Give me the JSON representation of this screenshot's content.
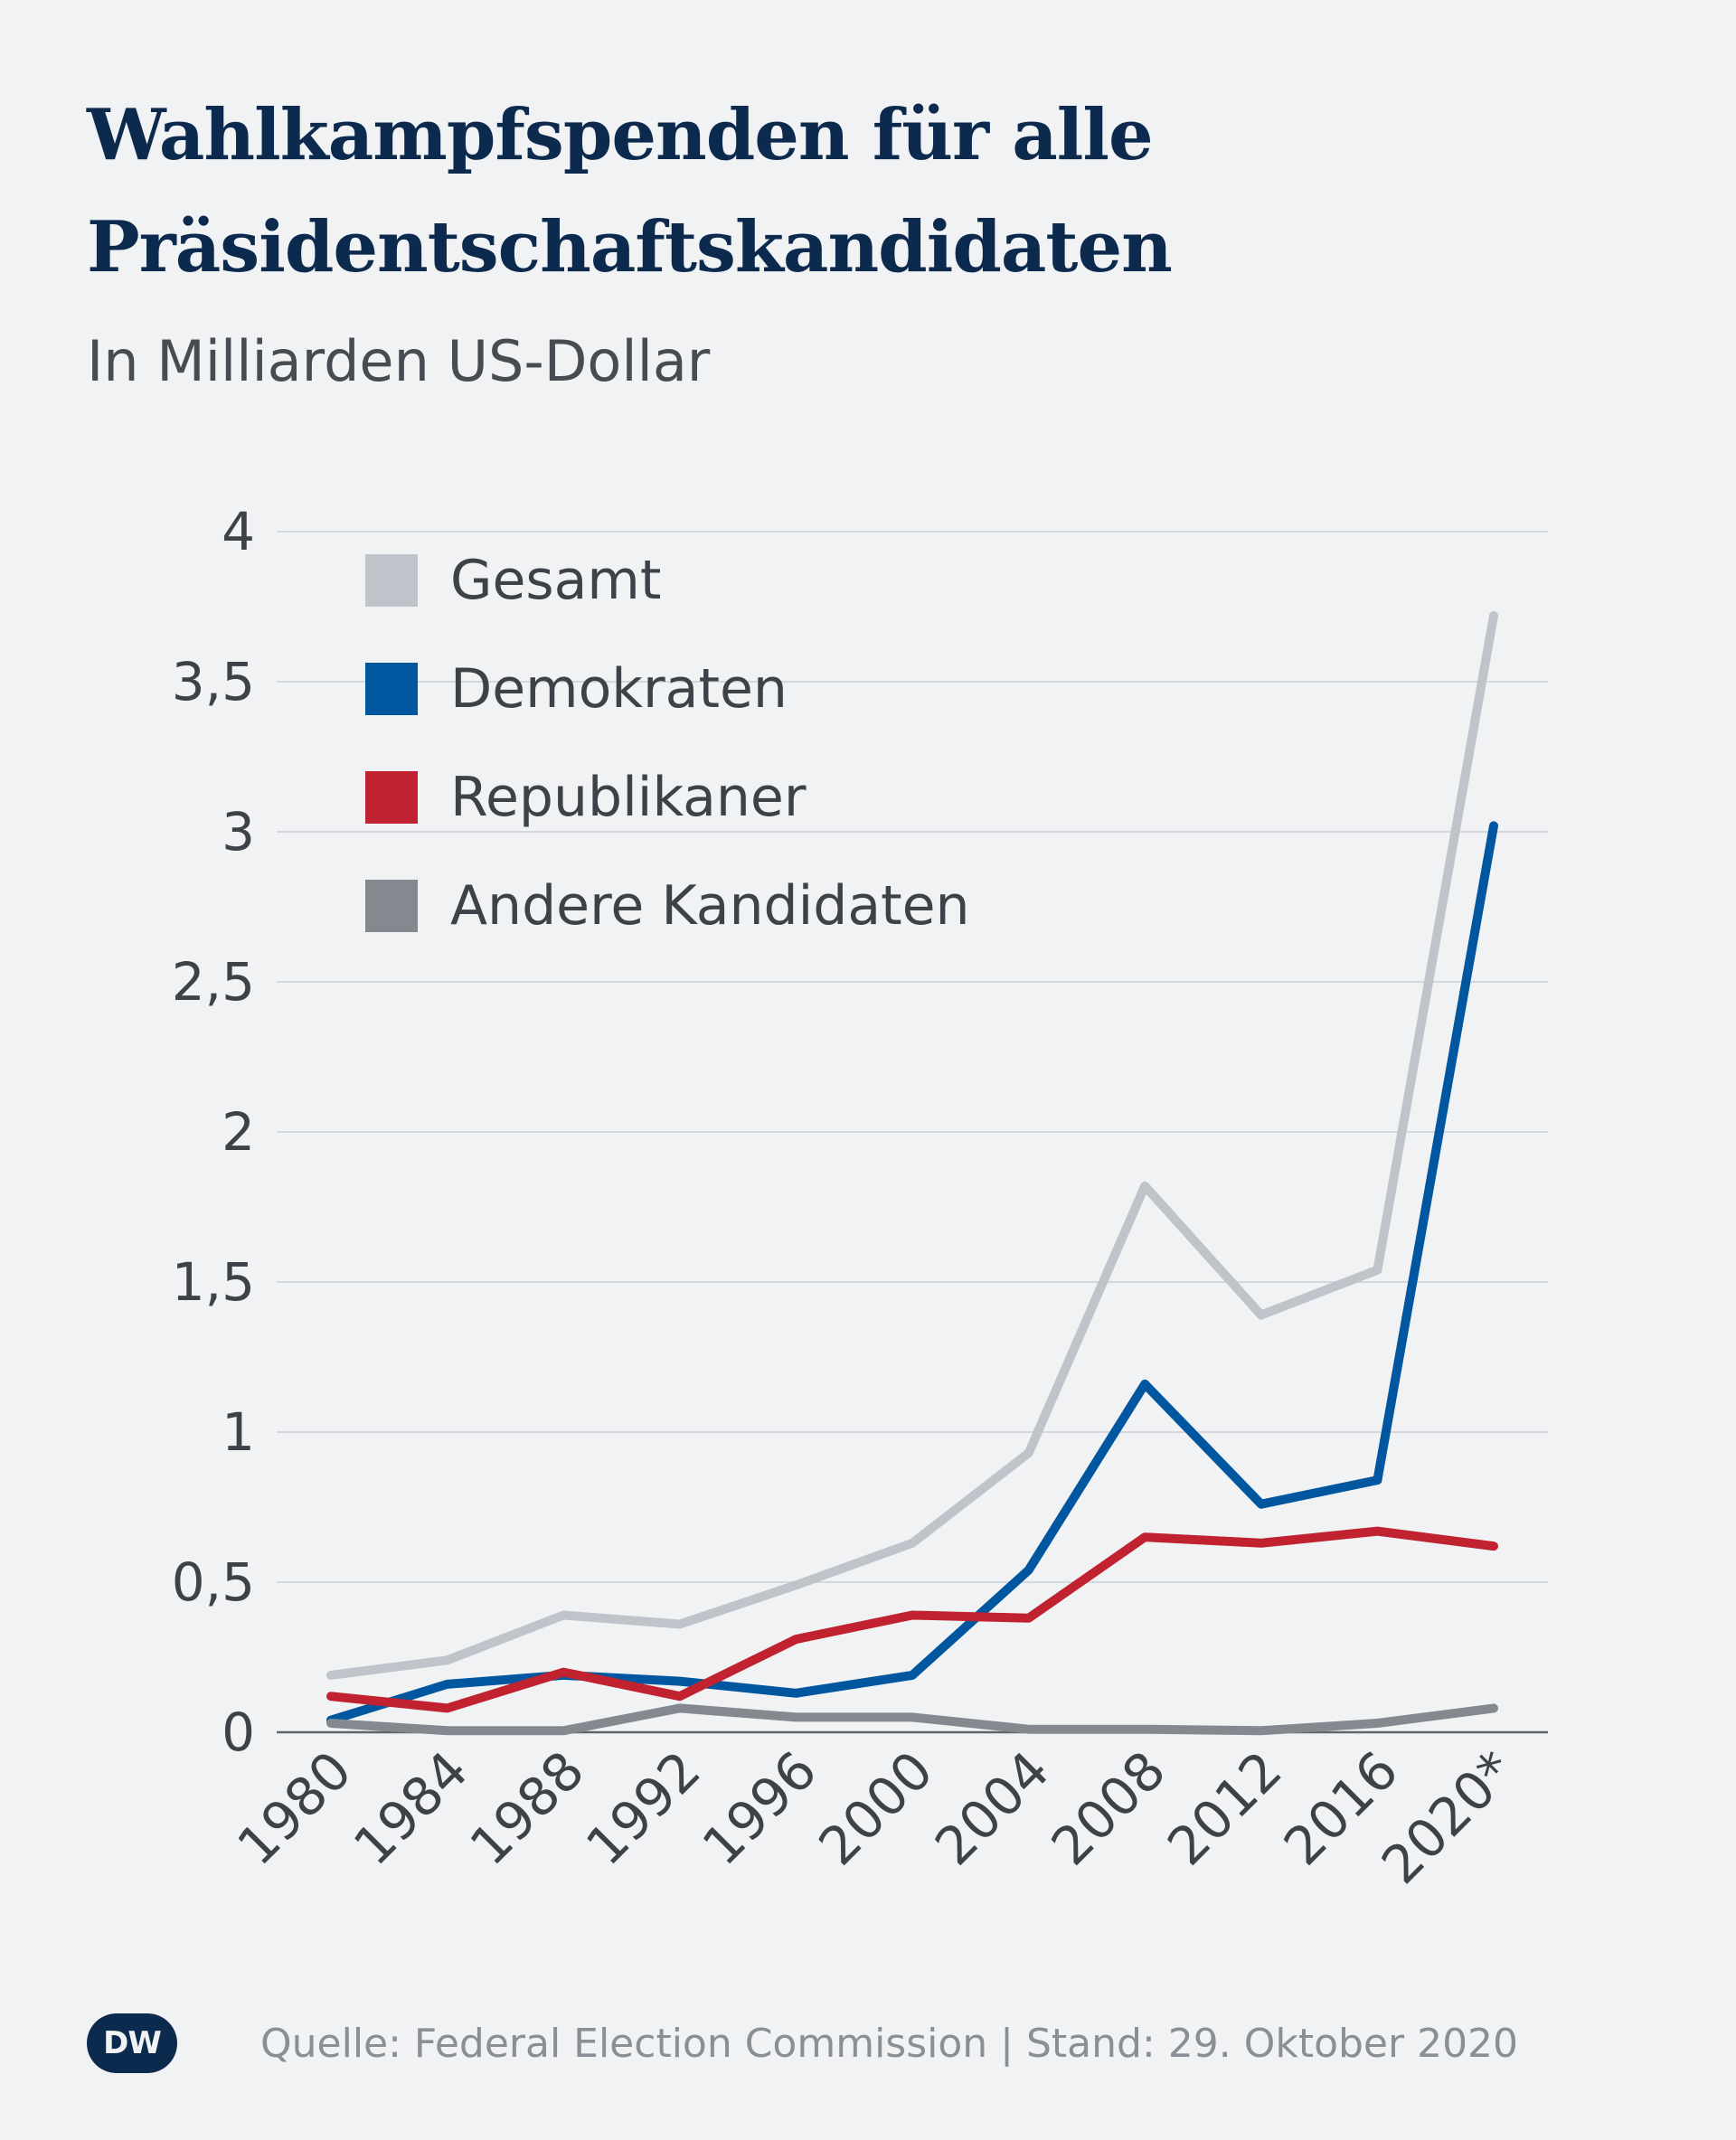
{
  "title": "Wahlkampfspenden für alle Präsidentschaftskandidaten",
  "subtitle": "In Milliarden US-Dollar",
  "footer": {
    "logo_text": "DW",
    "source": "Quelle: Federal Election Commission | Stand: 29. Oktober 2020"
  },
  "chart_data": {
    "type": "line",
    "categories": [
      "1980",
      "1984",
      "1988",
      "1992",
      "1996",
      "2000",
      "2004",
      "2008",
      "2012",
      "2016",
      "2020*"
    ],
    "ylim": [
      0,
      4
    ],
    "yticks": [
      0,
      0.5,
      1,
      1.5,
      2,
      2.5,
      3,
      3.5,
      4
    ],
    "ytick_labels": [
      "0",
      "0,5",
      "1",
      "1,5",
      "2",
      "2,5",
      "3",
      "3,5",
      "4"
    ],
    "grid": true,
    "legend_position": "top-left",
    "series": [
      {
        "name": "Gesamt",
        "color": "#bfc4cb",
        "values": [
          0.19,
          0.24,
          0.39,
          0.36,
          0.49,
          0.63,
          0.93,
          1.82,
          1.39,
          1.54,
          3.72
        ]
      },
      {
        "name": "Demokraten",
        "color": "#0057a0",
        "values": [
          0.04,
          0.16,
          0.19,
          0.17,
          0.13,
          0.19,
          0.54,
          1.16,
          0.76,
          0.84,
          3.02
        ]
      },
      {
        "name": "Republikaner",
        "color": "#c1222f",
        "values": [
          0.12,
          0.08,
          0.2,
          0.12,
          0.31,
          0.39,
          0.38,
          0.65,
          0.63,
          0.67,
          0.62
        ]
      },
      {
        "name": "Andere Kandidaten",
        "color": "#848990",
        "values": [
          0.03,
          0.005,
          0.005,
          0.08,
          0.05,
          0.05,
          0.01,
          0.01,
          0.005,
          0.03,
          0.08
        ]
      }
    ]
  }
}
